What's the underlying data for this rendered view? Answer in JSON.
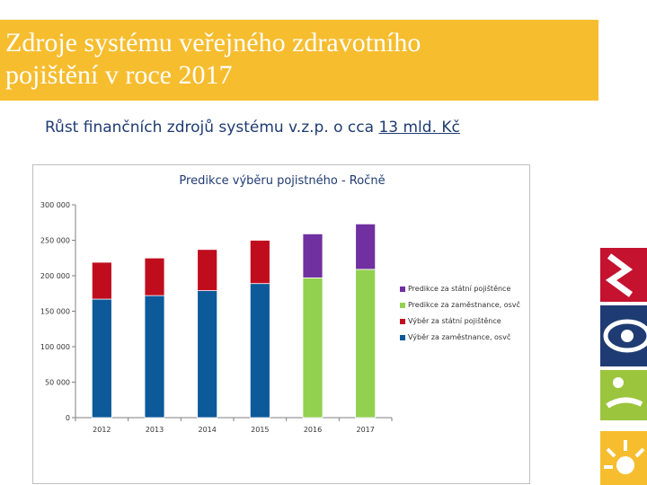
{
  "slide": {
    "title": "Zdroje systému veřejného zdravotního\npojištění v roce 2017",
    "subtitle_prefix": "Růst finančních zdrojů systému v.z.p. o cca ",
    "subtitle_amount": "13 mld. Kč",
    "colors": {
      "title_bar": "#f6bd2f",
      "subtitle_text": "#1f3b73"
    }
  },
  "chart_data": {
    "type": "bar",
    "stacked": true,
    "title": "Predikce výběru pojistného - Ročně",
    "xlabel": "",
    "ylabel": "",
    "categories": [
      "2012",
      "2013",
      "2014",
      "2015",
      "2016",
      "2017"
    ],
    "ylim": [
      0,
      300000
    ],
    "yticks": [
      0,
      50000,
      100000,
      150000,
      200000,
      250000,
      300000
    ],
    "ytick_labels": [
      "0",
      "50 000",
      "100 000",
      "150 000",
      "200 000",
      "250 000",
      "300 000"
    ],
    "grid": false,
    "legend_position": "right",
    "series": [
      {
        "name": "Výběr za zaměstnance, osvč",
        "color": "#0c5a9a",
        "values": [
          167000,
          172000,
          179000,
          189000,
          0,
          0
        ]
      },
      {
        "name": "Výběr za státní pojištěnce",
        "color": "#c00d1e",
        "values": [
          52000,
          53000,
          58000,
          61000,
          0,
          0
        ]
      },
      {
        "name": "Predikce za zaměstnance, osvč",
        "color": "#92d050",
        "values": [
          0,
          0,
          0,
          0,
          197000,
          209000
        ]
      },
      {
        "name": "Predikce za státní pojištěnce",
        "color": "#7030a0",
        "values": [
          0,
          0,
          0,
          0,
          62000,
          64000
        ]
      }
    ],
    "legend_order": [
      3,
      2,
      1,
      0
    ]
  }
}
